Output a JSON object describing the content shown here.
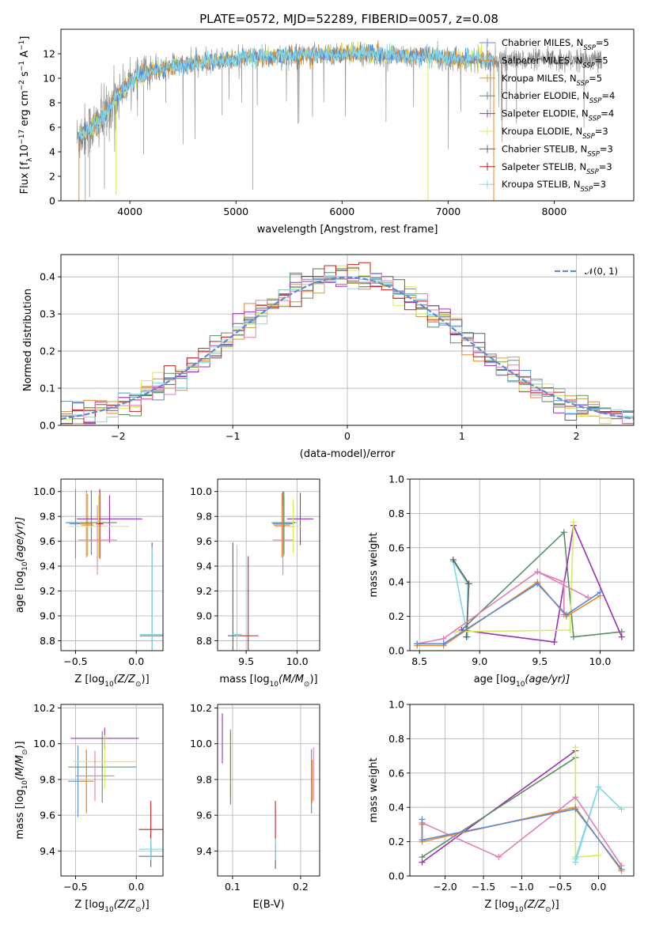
{
  "figure": {
    "title": "PLATE=0572, MJD=52289, FIBERID=0057, z=0.08"
  },
  "model_colors": {
    "Chabrier MILES": "#5b8bd6",
    "Salpeter MILES": "#e8892f",
    "Kroupa MILES": "#c8a050",
    "Chabrier ELODIE": "#5a8f62",
    "Salpeter ELODIE": "#9b30b8",
    "Kroupa ELODIE": "#d8e860",
    "Chabrier STELIB": "#606060",
    "Salpeter STELIB": "#c02020",
    "Kroupa STELIB": "#80d8e8",
    "Kroupa pink": "#e07fb8",
    "data": "#888888"
  },
  "chart_data": [
    {
      "id": "spectrum",
      "type": "line",
      "title": "PLATE=0572, MJD=52289, FIBERID=0057, z=0.08",
      "xlabel": "wavelength [Angstrom, rest frame]",
      "ylabel": "Flux [f",
      "ylabel_parts": [
        "Flux [f",
        "λ",
        "10",
        "−17",
        " erg cm",
        "−2",
        " s",
        "−1",
        " A",
        "−1",
        "]"
      ],
      "xlim": [
        3350,
        8750
      ],
      "ylim": [
        0,
        14
      ],
      "xticks": [
        4000,
        5000,
        6000,
        7000,
        8000
      ],
      "yticks": [
        0,
        2,
        4,
        6,
        8,
        10,
        12
      ],
      "legend_position": "top-right",
      "legend": [
        {
          "label": "Chabrier MILES, N",
          "sub": "SSP",
          "tail": "=5",
          "color_key": "Chabrier MILES"
        },
        {
          "label": "Salpeter MILES, N",
          "sub": "SSP",
          "tail": "=5",
          "color_key": "Salpeter MILES"
        },
        {
          "label": "Kroupa MILES, N",
          "sub": "SSP",
          "tail": "=5",
          "color_key": "Kroupa MILES"
        },
        {
          "label": "Chabrier ELODIE, N",
          "sub": "SSP",
          "tail": "=4",
          "color_key": "Chabrier ELODIE"
        },
        {
          "label": "Salpeter ELODIE, N",
          "sub": "SSP",
          "tail": "=4",
          "color_key": "Salpeter ELODIE"
        },
        {
          "label": "Kroupa ELODIE, N",
          "sub": "SSP",
          "tail": "=3",
          "color_key": "Kroupa ELODIE"
        },
        {
          "label": "Chabrier STELIB, N",
          "sub": "SSP",
          "tail": "=3",
          "color_key": "Chabrier STELIB"
        },
        {
          "label": "Salpeter STELIB, N",
          "sub": "SSP",
          "tail": "=3",
          "color_key": "Salpeter STELIB"
        },
        {
          "label": "Kroupa STELIB, N",
          "sub": "SSP",
          "tail": "=3",
          "color_key": "Kroupa STELIB"
        }
      ],
      "continuum": {
        "x": [
          3500,
          3550,
          3600,
          3650,
          3700,
          3750,
          3800,
          3850,
          3900,
          3950,
          4000,
          4100,
          4200,
          4300,
          4400,
          4600,
          4800,
          5000,
          5200,
          5400,
          5600,
          5800,
          6000,
          6200,
          6400,
          6600,
          6800,
          7000,
          7200,
          7400
        ],
        "y": [
          5.0,
          5.5,
          5.8,
          6.0,
          6.3,
          6.8,
          7.5,
          8.2,
          8.8,
          9.2,
          9.8,
          10.2,
          10.6,
          10.8,
          11.0,
          11.2,
          11.4,
          11.6,
          11.7,
          11.8,
          11.9,
          12.0,
          12.0,
          12.0,
          11.9,
          11.8,
          11.8,
          11.6,
          11.5,
          11.5
        ]
      },
      "data_line_range": [
        3500,
        8450
      ],
      "model_line_range": [
        3520,
        7430
      ]
    },
    {
      "id": "residuals",
      "type": "histogram",
      "xlabel": "(data-model)/error",
      "ylabel": "Normed distribution",
      "xlim": [
        -2.5,
        2.5
      ],
      "ylim": [
        0,
        0.46
      ],
      "xticks": [
        -2,
        -1,
        0,
        1,
        2
      ],
      "xtick_labels": [
        "−2",
        "−1",
        "0",
        "1",
        "2"
      ],
      "yticks": [
        0.0,
        0.1,
        0.2,
        0.3,
        0.4
      ],
      "legend_position": "top-right",
      "legend_label": "𝒩(0, 1)",
      "gaussian_color": "#5b8bd6",
      "bin_width": 0.1
    },
    {
      "id": "age_vs_Z",
      "type": "scatter",
      "xlabel": "Z [log",
      "xlabel_sub": "10",
      "xlabel_tail": "(Z/Z",
      "xlabel_end": ")]",
      "ylabel": "age  [log",
      "ylabel_sub": "10",
      "ylabel_tail": "(age/yr)]",
      "xlim": [
        -0.62,
        0.22
      ],
      "ylim": [
        8.72,
        10.1
      ],
      "xticks": [
        -0.5,
        0.0
      ],
      "xtick_labels": [
        "−0.5",
        "0.0"
      ],
      "yticks": [
        8.8,
        9.0,
        9.2,
        9.4,
        9.6,
        9.8,
        10.0
      ],
      "points": [
        {
          "model": "Chabrier MILES",
          "x": -0.5,
          "y": 9.74,
          "xerr": 0.05,
          "yerr": 0.28
        },
        {
          "model": "Salpeter MILES",
          "x": -0.41,
          "y": 9.74,
          "xerr": 0.05,
          "yerr": 0.27
        },
        {
          "model": "Kroupa MILES",
          "x": -0.4,
          "y": 9.73,
          "xerr": 0.05,
          "yerr": 0.25
        },
        {
          "model": "Chabrier ELODIE",
          "x": -0.37,
          "y": 9.75,
          "xerr": 0.21,
          "yerr": 0.26
        },
        {
          "model": "Salpeter ELODIE",
          "x": -0.22,
          "y": 9.78,
          "xerr": 0.27,
          "yerr": 0.19
        },
        {
          "model": "Kroupa ELODIE",
          "x": -0.31,
          "y": 9.72,
          "xerr": 0.25,
          "yerr": 0.25
        },
        {
          "model": "Chabrier STELIB",
          "x": 0.13,
          "y": 8.84,
          "xerr": 0.1,
          "yerr": 0.75
        },
        {
          "model": "Salpeter STELIB",
          "x": -0.3,
          "y": 9.74,
          "xerr": 0.03,
          "yerr": 0.28
        },
        {
          "model": "Kroupa STELIB",
          "x": 0.13,
          "y": 8.85,
          "xerr": 0.1,
          "yerr": 0.7
        },
        {
          "model": "Kroupa pink",
          "x": -0.32,
          "y": 9.61,
          "xerr": 0.16,
          "yerr": 0.28
        }
      ]
    },
    {
      "id": "age_vs_mass",
      "type": "scatter",
      "xlabel": "mass [log",
      "xlabel_sub": "10",
      "xlabel_tail": "(M/M",
      "xlabel_end": ")]",
      "xlim": [
        9.22,
        10.22
      ],
      "ylim": [
        8.72,
        10.1
      ],
      "xticks": [
        9.5,
        10.0
      ],
      "xtick_labels": [
        "9.5",
        "10.0"
      ],
      "yticks": [
        8.8,
        9.0,
        9.2,
        9.4,
        9.6,
        9.8,
        10.0
      ],
      "points": [
        {
          "model": "Chabrier MILES",
          "x": 9.86,
          "y": 9.74,
          "xerr": 0.1,
          "yerr": 0.26
        },
        {
          "model": "Salpeter MILES",
          "x": 9.85,
          "y": 9.73,
          "xerr": 0.08,
          "yerr": 0.26
        },
        {
          "model": "Kroupa MILES",
          "x": 9.87,
          "y": 9.72,
          "xerr": 0.09,
          "yerr": 0.24
        },
        {
          "model": "Chabrier ELODIE",
          "x": 9.87,
          "y": 9.75,
          "xerr": 0.12,
          "yerr": 0.25
        },
        {
          "model": "Salpeter ELODIE",
          "x": 10.03,
          "y": 9.78,
          "xerr": 0.13,
          "yerr": 0.21
        },
        {
          "model": "Kroupa ELODIE",
          "x": 9.96,
          "y": 9.72,
          "xerr": 0.08,
          "yerr": 0.22
        },
        {
          "model": "Chabrier STELIB",
          "x": 9.37,
          "y": 8.84,
          "xerr": 0.05,
          "yerr": 0.75
        },
        {
          "model": "Salpeter STELIB",
          "x": 9.52,
          "y": 8.84,
          "xerr": 0.1,
          "yerr": 0.64
        },
        {
          "model": "Kroupa STELIB",
          "x": 9.41,
          "y": 8.85,
          "xerr": 0.05,
          "yerr": 0.72
        },
        {
          "model": "Kroupa pink",
          "x": 9.86,
          "y": 9.61,
          "xerr": 0.1,
          "yerr": 0.28
        }
      ]
    },
    {
      "id": "weight_vs_age",
      "type": "line",
      "xlabel": "age  [log",
      "xlabel_sub": "10",
      "xlabel_tail": "(age/yr)]",
      "ylabel": "mass weight",
      "xlim": [
        8.42,
        10.28
      ],
      "ylim": [
        0,
        1
      ],
      "xticks": [
        8.5,
        9.0,
        9.5,
        10.0
      ],
      "xtick_labels": [
        "8.5",
        "9.0",
        "9.5",
        "10.0"
      ],
      "yticks": [
        0.0,
        0.2,
        0.4,
        0.6,
        0.8,
        1.0
      ],
      "series": [
        {
          "model": "Kroupa STELIB",
          "x": [
            8.78,
            8.9,
            8.9,
            8.78
          ],
          "y": [
            0.52,
            0.39,
            0.08,
            0.52
          ]
        },
        {
          "model": "Chabrier STELIB",
          "x": [
            8.78,
            8.91,
            8.89
          ],
          "y": [
            0.53,
            0.39,
            0.08
          ]
        },
        {
          "model": "Chabrier ELODIE",
          "x": [
            8.85,
            9.7,
            9.78,
            10.18
          ],
          "y": [
            0.12,
            0.69,
            0.08,
            0.11
          ]
        },
        {
          "model": "Salpeter ELODIE",
          "x": [
            8.85,
            9.62,
            9.78,
            10.18
          ],
          "y": [
            0.12,
            0.05,
            0.73,
            0.08
          ]
        },
        {
          "model": "Kroupa ELODIE",
          "x": [
            8.8,
            9.75,
            9.78
          ],
          "y": [
            0.11,
            0.12,
            0.75
          ]
        },
        {
          "model": "Kroupa pink",
          "x": [
            8.48,
            8.7,
            9.48,
            9.9
          ],
          "y": [
            0.04,
            0.07,
            0.46,
            0.31
          ]
        },
        {
          "model": "Kroupa pink",
          "x": [
            9.48,
            9.7,
            9.7
          ],
          "y": [
            0.46,
            0.4,
            0.21
          ]
        },
        {
          "model": "Salpeter MILES",
          "x": [
            8.48,
            8.7,
            9.48,
            9.72,
            10.0
          ],
          "y": [
            0.03,
            0.03,
            0.4,
            0.2,
            0.32
          ]
        },
        {
          "model": "Chabrier MILES",
          "x": [
            8.48,
            8.7,
            9.48,
            9.72,
            10.0
          ],
          "y": [
            0.04,
            0.04,
            0.39,
            0.21,
            0.34
          ]
        }
      ]
    },
    {
      "id": "mass_vs_Z",
      "type": "scatter",
      "xlabel": "Z [log",
      "xlabel_sub": "10",
      "xlabel_tail": "(Z/Z",
      "xlabel_end": ")]",
      "ylabel": "mass [log",
      "ylabel_sub": "10",
      "ylabel_tail": "(M/M",
      "ylabel_end": ")]",
      "xlim": [
        -0.62,
        0.22
      ],
      "ylim": [
        9.26,
        10.22
      ],
      "xticks": [
        -0.5,
        0.0
      ],
      "xtick_labels": [
        "−0.5",
        "0.0"
      ],
      "yticks": [
        9.4,
        9.6,
        9.8,
        10.0,
        10.2
      ],
      "points": [
        {
          "model": "Chabrier MILES",
          "x": -0.48,
          "y": 9.79,
          "xerr": 0.08,
          "yerr": 0.2
        },
        {
          "model": "Salpeter MILES",
          "x": -0.41,
          "y": 9.79,
          "xerr": 0.06,
          "yerr": 0.18
        },
        {
          "model": "Kroupa MILES",
          "x": -0.41,
          "y": 9.79,
          "xerr": 0.06,
          "yerr": 0.17
        },
        {
          "model": "Chabrier ELODIE",
          "x": -0.28,
          "y": 9.87,
          "xerr": 0.28,
          "yerr": 0.2
        },
        {
          "model": "Salpeter ELODIE",
          "x": -0.26,
          "y": 10.03,
          "xerr": 0.28,
          "yerr": 0.06
        },
        {
          "model": "Kroupa ELODIE",
          "x": -0.26,
          "y": 9.9,
          "xerr": 0.26,
          "yerr": 0.15
        },
        {
          "model": "Chabrier STELIB",
          "x": 0.12,
          "y": 9.37,
          "xerr": 0.1,
          "yerr": 0.06
        },
        {
          "model": "Salpeter STELIB",
          "x": 0.12,
          "y": 9.52,
          "xerr": 0.1,
          "yerr": 0.16
        },
        {
          "model": "Kroupa STELIB",
          "x": 0.12,
          "y": 9.41,
          "xerr": 0.1,
          "yerr": 0.06
        },
        {
          "model": "Kroupa pink",
          "x": -0.34,
          "y": 9.82,
          "xerr": 0.16,
          "yerr": 0.14
        }
      ]
    },
    {
      "id": "mass_vs_ebv",
      "type": "scatter",
      "xlabel": "E(B-V)",
      "xlim": [
        0.078,
        0.228
      ],
      "ylim": [
        9.26,
        10.22
      ],
      "xticks": [
        0.1,
        0.2
      ],
      "xtick_labels": [
        "0.1",
        "0.2"
      ],
      "yticks": [
        9.4,
        9.6,
        9.8,
        10.0,
        10.2
      ],
      "points": [
        {
          "model": "Salpeter ELODIE",
          "x": 0.085,
          "y": 10.03,
          "xerr": 0.0,
          "yerr": 0.14
        },
        {
          "model": "Kroupa ELODIE",
          "x": 0.097,
          "y": 9.88,
          "xerr": 0.0,
          "yerr": 0.18
        },
        {
          "model": "Chabrier ELODIE",
          "x": 0.097,
          "y": 9.87,
          "xerr": 0.0,
          "yerr": 0.21
        },
        {
          "model": "Chabrier STELIB",
          "x": 0.163,
          "y": 9.37,
          "xerr": 0.0,
          "yerr": 0.07
        },
        {
          "model": "Salpeter STELIB",
          "x": 0.163,
          "y": 9.52,
          "xerr": 0.0,
          "yerr": 0.16
        },
        {
          "model": "Kroupa STELIB",
          "x": 0.163,
          "y": 9.41,
          "xerr": 0.0,
          "yerr": 0.06
        },
        {
          "model": "Chabrier MILES",
          "x": 0.216,
          "y": 9.79,
          "xerr": 0.0,
          "yerr": 0.18
        },
        {
          "model": "Salpeter MILES",
          "x": 0.217,
          "y": 9.79,
          "xerr": 0.0,
          "yerr": 0.12
        },
        {
          "model": "Kroupa pink",
          "x": 0.219,
          "y": 9.83,
          "xerr": 0.0,
          "yerr": 0.15
        }
      ]
    },
    {
      "id": "weight_vs_Z",
      "type": "line",
      "xlabel": "Z [log",
      "xlabel_sub": "10",
      "xlabel_tail": "(Z/Z",
      "xlabel_end": ")]",
      "ylabel": "mass weight",
      "xlim": [
        -2.46,
        0.46
      ],
      "ylim": [
        0,
        1
      ],
      "xticks": [
        -2.0,
        -1.5,
        -1.0,
        -0.5,
        0.0
      ],
      "xtick_labels": [
        "−2.0",
        "−1.5",
        "−1.0",
        "−0.5",
        "0.0"
      ],
      "yticks": [
        0.0,
        0.2,
        0.4,
        0.6,
        0.8,
        1.0
      ],
      "series": [
        {
          "model": "Salpeter ELODIE",
          "x": [
            -2.3,
            -0.3
          ],
          "y": [
            0.08,
            0.73
          ]
        },
        {
          "model": "Chabrier ELODIE",
          "x": [
            -2.3,
            -0.3
          ],
          "y": [
            0.11,
            0.69
          ]
        },
        {
          "model": "Kroupa ELODIE",
          "x": [
            -0.3,
            -0.3,
            0.0
          ],
          "y": [
            0.75,
            0.11,
            0.12
          ]
        },
        {
          "model": "Kroupa STELIB",
          "x": [
            -0.3,
            0.0,
            0.3,
            0.0,
            -0.3
          ],
          "y": [
            0.08,
            0.52,
            0.39,
            0.52,
            0.1
          ]
        },
        {
          "model": "Kroupa pink",
          "x": [
            -2.3,
            -1.3,
            -0.3,
            0.3
          ],
          "y": [
            0.31,
            0.11,
            0.46,
            0.06
          ]
        },
        {
          "model": "Salpeter MILES",
          "x": [
            -2.3,
            -2.3,
            -0.3,
            0.3
          ],
          "y": [
            0.3,
            0.2,
            0.4,
            0.03
          ]
        },
        {
          "model": "Chabrier MILES",
          "x": [
            -2.3,
            -2.3,
            -0.3,
            0.3
          ],
          "y": [
            0.33,
            0.21,
            0.39,
            0.04
          ]
        }
      ]
    }
  ]
}
